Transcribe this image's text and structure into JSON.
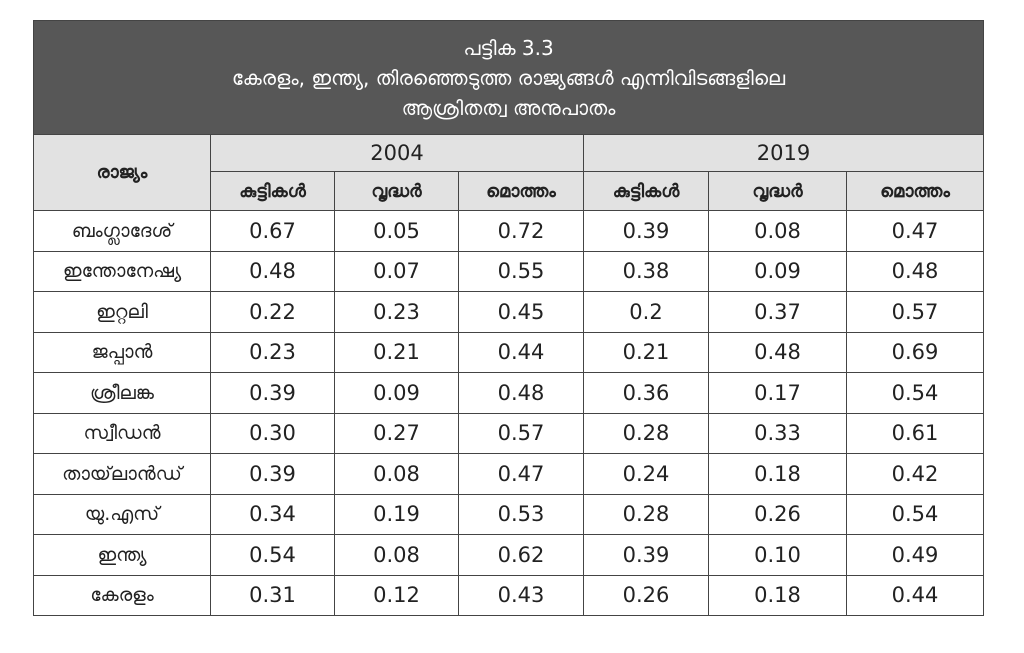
{
  "table": {
    "number": "പട്ടിക 3.3",
    "title_line1": "കേരളം, ഇന്ത്യ, തിരഞ്ഞെടുത്ത രാജ്യങ്ങൾ എന്നിവിടങ്ങളിലെ",
    "title_line2": "ആശ്രിതത്വ അനുപാതം",
    "country_header": "രാജ്യം",
    "years": [
      "2004",
      "2019"
    ],
    "subheaders": [
      "കുട്ടികൾ",
      "വൃദ്ധർ",
      "മൊത്തം"
    ],
    "rows": [
      {
        "country": "ബംഗ്ലാദേശ്",
        "values": [
          "0.67",
          "0.05",
          "0.72",
          "0.39",
          "0.08",
          "0.47"
        ]
      },
      {
        "country": "ഇന്തോനേഷ്യ",
        "values": [
          "0.48",
          "0.07",
          "0.55",
          "0.38",
          "0.09",
          "0.48"
        ]
      },
      {
        "country": "ഇറ്റലി",
        "values": [
          "0.22",
          "0.23",
          "0.45",
          "0.2",
          "0.37",
          "0.57"
        ]
      },
      {
        "country": "ജപ്പാൻ",
        "values": [
          "0.23",
          "0.21",
          "0.44",
          "0.21",
          "0.48",
          "0.69"
        ]
      },
      {
        "country": "ശ്രീലങ്ക",
        "values": [
          "0.39",
          "0.09",
          "0.48",
          "0.36",
          "0.17",
          "0.54"
        ]
      },
      {
        "country": "സ്വീഡൻ",
        "values": [
          "0.30",
          "0.27",
          "0.57",
          "0.28",
          "0.33",
          "0.61"
        ]
      },
      {
        "country": "തായ്‌ലാൻഡ്",
        "values": [
          "0.39",
          "0.08",
          "0.47",
          "0.24",
          "0.18",
          "0.42"
        ]
      },
      {
        "country": "യു.എസ്",
        "values": [
          "0.34",
          "0.19",
          "0.53",
          "0.28",
          "0.26",
          "0.54"
        ]
      },
      {
        "country": "ഇന്ത്യ",
        "values": [
          "0.54",
          "0.08",
          "0.62",
          "0.39",
          "0.10",
          "0.49"
        ]
      },
      {
        "country": "കേരളം",
        "values": [
          "0.31",
          "0.12",
          "0.43",
          "0.26",
          "0.18",
          "0.44"
        ]
      }
    ]
  }
}
